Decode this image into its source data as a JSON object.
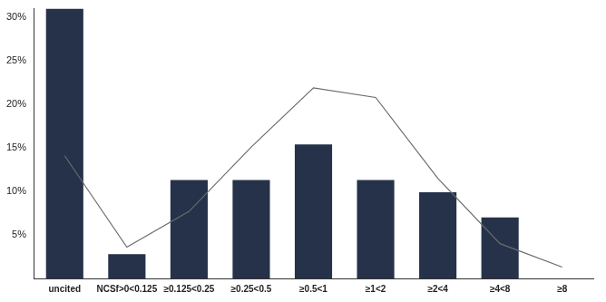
{
  "chart_data": {
    "type": "bar",
    "categories": [
      "uncited",
      "NCSf>0<0.125",
      "≥0.125<0.25",
      "≥0.25<0.5",
      "≥0.5<1",
      "≥1<2",
      "≥2<4",
      "≥4<8",
      "≥8"
    ],
    "series": [
      {
        "type": "bar",
        "color": "#25324a",
        "values": [
          31.0,
          2.8,
          11.3,
          11.3,
          15.4,
          11.3,
          9.9,
          7.0,
          0
        ]
      },
      {
        "type": "line",
        "color": "#6b6b6b",
        "values": [
          14.1,
          3.6,
          7.7,
          15.1,
          21.9,
          20.8,
          11.5,
          4.0,
          1.3
        ]
      }
    ],
    "ylim": [
      0,
      31
    ],
    "yticks": [
      {
        "value": 5,
        "label": "5%"
      },
      {
        "value": 10,
        "label": "10%"
      },
      {
        "value": 15,
        "label": "15%"
      },
      {
        "value": 20,
        "label": "20%"
      },
      {
        "value": 25,
        "label": "25%"
      },
      {
        "value": 30,
        "label": "30%"
      }
    ],
    "grid": false
  }
}
